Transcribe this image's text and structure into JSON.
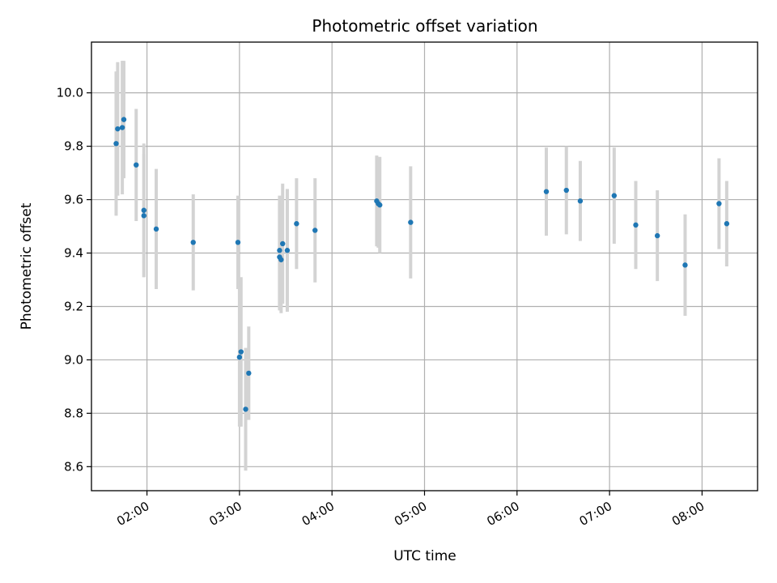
{
  "chart_data": {
    "type": "scatter",
    "title": "Photometric offset variation",
    "xlabel": "UTC time",
    "ylabel": "Photometric offset",
    "x_ticks": [
      "02:00",
      "03:00",
      "04:00",
      "05:00",
      "06:00",
      "07:00",
      "08:00"
    ],
    "y_ticks": [
      "8.6",
      "8.8",
      "9.0",
      "9.2",
      "9.4",
      "9.6",
      "9.8",
      "10.0"
    ],
    "xlim": [
      "01:24",
      "08:36"
    ],
    "ylim": [
      8.51,
      10.19
    ],
    "grid": true,
    "colors": {
      "point": "#1f77b4",
      "errorbar": "#d3d3d3",
      "grid": "#b0b0b0"
    },
    "points": [
      {
        "x": "01:40",
        "y": 9.81,
        "err_low": 0.27,
        "err_high": 0.27
      },
      {
        "x": "01:41",
        "y": 9.865,
        "err_low": 0.25,
        "err_high": 0.25
      },
      {
        "x": "01:44",
        "y": 9.87,
        "err_low": 0.25,
        "err_high": 0.25
      },
      {
        "x": "01:45",
        "y": 9.9,
        "err_low": 0.22,
        "err_high": 0.22
      },
      {
        "x": "01:53",
        "y": 9.73,
        "err_low": 0.21,
        "err_high": 0.21
      },
      {
        "x": "01:58",
        "y": 9.56,
        "err_low": 0.25,
        "err_high": 0.25
      },
      {
        "x": "01:58",
        "y": 9.54,
        "err_low": 0.23,
        "err_high": 0.23
      },
      {
        "x": "02:06",
        "y": 9.49,
        "err_low": 0.225,
        "err_high": 0.225
      },
      {
        "x": "02:30",
        "y": 9.44,
        "err_low": 0.18,
        "err_high": 0.18
      },
      {
        "x": "02:59",
        "y": 9.44,
        "err_low": 0.175,
        "err_high": 0.175
      },
      {
        "x": "03:00",
        "y": 9.01,
        "err_low": 0.26,
        "err_high": 0.26
      },
      {
        "x": "03:01",
        "y": 9.03,
        "err_low": 0.28,
        "err_high": 0.28
      },
      {
        "x": "03:04",
        "y": 8.815,
        "err_low": 0.23,
        "err_high": 0.23
      },
      {
        "x": "03:06",
        "y": 8.95,
        "err_low": 0.175,
        "err_high": 0.175
      },
      {
        "x": "03:26",
        "y": 9.41,
        "err_low": 0.205,
        "err_high": 0.205
      },
      {
        "x": "03:26",
        "y": 9.385,
        "err_low": 0.2,
        "err_high": 0.2
      },
      {
        "x": "03:27",
        "y": 9.375,
        "err_low": 0.2,
        "err_high": 0.2
      },
      {
        "x": "03:28",
        "y": 9.435,
        "err_low": 0.225,
        "err_high": 0.225
      },
      {
        "x": "03:31",
        "y": 9.41,
        "err_low": 0.23,
        "err_high": 0.23
      },
      {
        "x": "03:37",
        "y": 9.51,
        "err_low": 0.17,
        "err_high": 0.17
      },
      {
        "x": "03:49",
        "y": 9.485,
        "err_low": 0.195,
        "err_high": 0.195
      },
      {
        "x": "04:29",
        "y": 9.595,
        "err_low": 0.17,
        "err_high": 0.17
      },
      {
        "x": "04:30",
        "y": 9.585,
        "err_low": 0.165,
        "err_high": 0.165
      },
      {
        "x": "04:31",
        "y": 9.58,
        "err_low": 0.18,
        "err_high": 0.18
      },
      {
        "x": "04:51",
        "y": 9.515,
        "err_low": 0.21,
        "err_high": 0.21
      },
      {
        "x": "06:19",
        "y": 9.63,
        "err_low": 0.165,
        "err_high": 0.165
      },
      {
        "x": "06:32",
        "y": 9.635,
        "err_low": 0.165,
        "err_high": 0.165
      },
      {
        "x": "06:41",
        "y": 9.595,
        "err_low": 0.15,
        "err_high": 0.15
      },
      {
        "x": "07:03",
        "y": 9.615,
        "err_low": 0.18,
        "err_high": 0.18
      },
      {
        "x": "07:17",
        "y": 9.505,
        "err_low": 0.165,
        "err_high": 0.165
      },
      {
        "x": "07:31",
        "y": 9.465,
        "err_low": 0.17,
        "err_high": 0.17
      },
      {
        "x": "07:49",
        "y": 9.355,
        "err_low": 0.19,
        "err_high": 0.19
      },
      {
        "x": "08:11",
        "y": 9.585,
        "err_low": 0.17,
        "err_high": 0.17
      },
      {
        "x": "08:16",
        "y": 9.51,
        "err_low": 0.16,
        "err_high": 0.16
      }
    ]
  }
}
